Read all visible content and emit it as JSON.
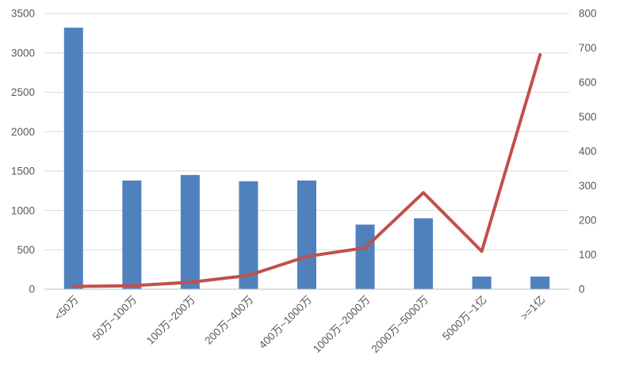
{
  "chart_data": {
    "type": "bar",
    "subtype": "combo-bar-line-dual-axis",
    "title": "",
    "xlabel": "",
    "ylabel": "",
    "legend": "none",
    "grid": "horizontal",
    "categories": [
      "<50万",
      "50万~100万",
      "100万~200万",
      "200万~400万",
      "400万~1000万",
      "1000万~2000万",
      "2000万~5000万",
      "5000万~1亿",
      ">=1亿"
    ],
    "series": [
      {
        "id": "bars",
        "type": "bar",
        "axis": "left",
        "color": "#4f81bd",
        "values": [
          3320,
          1380,
          1450,
          1370,
          1380,
          820,
          900,
          160,
          160
        ]
      },
      {
        "id": "line",
        "type": "line",
        "axis": "right",
        "color": "#c0504d",
        "stroke_width": 4,
        "values": [
          8,
          10,
          20,
          40,
          95,
          120,
          280,
          110,
          680
        ]
      }
    ],
    "left_axis": {
      "min": 0,
      "max": 3500,
      "step": 500,
      "ticks": [
        0,
        500,
        1000,
        1500,
        2000,
        2500,
        3000,
        3500
      ]
    },
    "right_axis": {
      "min": 0,
      "max": 800,
      "step": 100,
      "ticks": [
        0,
        100,
        200,
        300,
        400,
        500,
        600,
        700,
        800
      ]
    },
    "colors": {
      "bar": "#4f81bd",
      "line": "#c0504d",
      "gridline": "#d9d9d9",
      "axis_line": "#bfbfbf",
      "tick_label": "#595959"
    },
    "x_label_rotation_deg": 45
  }
}
